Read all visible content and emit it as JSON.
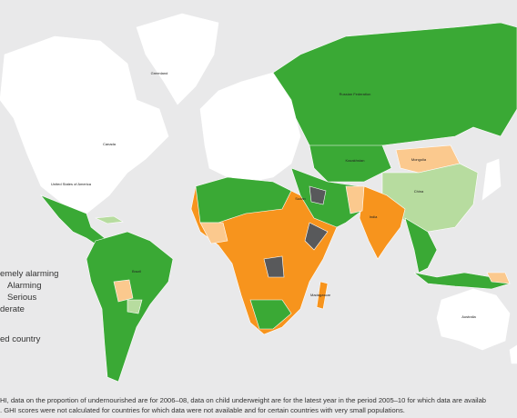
{
  "legend": {
    "items": [
      "emely alarming",
      "Alarming",
      "Serious",
      "derate",
      "ed country"
    ]
  },
  "labels": [
    "Greenland",
    "Canada",
    "United States of America",
    "Russian Federation",
    "Kazakhstan",
    "Mongolia",
    "China",
    "India",
    "Brazil",
    "Australia",
    "Sudan",
    "Madagascar"
  ],
  "footnote": [
    "HI, data on the proportion of undernourished are for 2006–08, data on child underweight are for the latest year in the period 2005–10 for which data are availab",
    ". GHI scores were not calculated for countries for which data were not available and for certain countries with very small populations."
  ]
}
